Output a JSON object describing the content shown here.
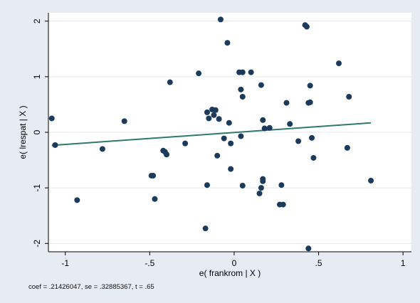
{
  "chart_data": {
    "type": "scatter",
    "xlabel": "e( frankrom | X )",
    "ylabel": "e( lrespat | X )",
    "xlim": [
      -1.1,
      1.05
    ],
    "ylim": [
      -2.15,
      2.15
    ],
    "x_ticks": [
      -1,
      -0.5,
      0,
      0.5,
      1
    ],
    "x_tick_labels": [
      "-1",
      "-.5",
      "0",
      ".5",
      "1"
    ],
    "y_ticks": [
      -2,
      -1,
      0,
      1,
      2
    ],
    "y_tick_labels": [
      "-2",
      "-1",
      "0",
      "1",
      "2"
    ],
    "grid": "horizontal",
    "note": "coef = .21426047, se = .32885367, t = .65",
    "colors": {
      "points": "#1b3a5c",
      "line": "#2f7a6a",
      "background": "#e7ebf2",
      "plot": "#ffffff",
      "grid": "#e3e7ee"
    },
    "fit_line": {
      "x": [
        -1.08,
        0.81
      ],
      "y": [
        -0.235,
        0.17
      ]
    },
    "points": {
      "x": [
        -1.08,
        -1.06,
        -0.93,
        -0.78,
        -0.65,
        -0.49,
        -0.48,
        -0.47,
        -0.42,
        -0.41,
        -0.4,
        -0.38,
        -0.29,
        -0.21,
        -0.17,
        -0.16,
        -0.16,
        -0.15,
        -0.13,
        -0.12,
        -0.11,
        -0.1,
        -0.09,
        -0.08,
        -0.06,
        -0.04,
        -0.03,
        -0.02,
        -0.02,
        0.03,
        0.04,
        0.04,
        0.05,
        0.05,
        0.05,
        0.1,
        0.15,
        0.16,
        0.16,
        0.17,
        0.17,
        0.17,
        0.18,
        0.21,
        0.27,
        0.28,
        0.29,
        0.31,
        0.33,
        0.38,
        0.42,
        0.43,
        0.44,
        0.44,
        0.45,
        0.45,
        0.46,
        0.47,
        0.62,
        0.67,
        0.68,
        0.81
      ],
      "y": [
        0.25,
        -0.23,
        -1.22,
        -0.3,
        0.2,
        -0.78,
        -0.78,
        -1.2,
        -0.33,
        -0.35,
        -0.4,
        0.9,
        -0.2,
        1.06,
        -1.73,
        0.36,
        -0.95,
        0.25,
        0.41,
        0.31,
        0.4,
        -0.42,
        0.24,
        2.03,
        -0.11,
        1.61,
        0.17,
        -0.2,
        -0.66,
        1.08,
        -0.07,
        0.77,
        0.64,
        -0.96,
        1.08,
        1.08,
        -1.1,
        -1.0,
        0.85,
        0.22,
        -0.84,
        -0.88,
        0.07,
        0.08,
        -1.3,
        -0.95,
        -1.3,
        0.53,
        0.15,
        -0.16,
        1.93,
        1.9,
        -2.09,
        0.53,
        0.54,
        0.84,
        -0.1,
        -0.46,
        1.24,
        -0.28,
        0.64,
        -0.87
      ]
    }
  }
}
